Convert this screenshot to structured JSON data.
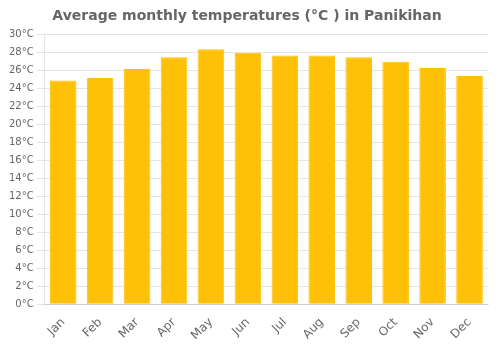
{
  "chart_data": {
    "type": "bar",
    "title": "Average monthly temperatures (°C ) in Panikihan",
    "categories": [
      "Jan",
      "Feb",
      "Mar",
      "Apr",
      "May",
      "Jun",
      "Jul",
      "Aug",
      "Sep",
      "Oct",
      "Nov",
      "Dec"
    ],
    "values": [
      24.9,
      25.2,
      26.2,
      27.5,
      28.4,
      28.0,
      27.7,
      27.7,
      27.5,
      27.0,
      26.3,
      25.4
    ],
    "color": "#FFC107",
    "ylim": [
      0,
      30
    ],
    "yticks": [
      {
        "value": 0,
        "label": "0°C"
      },
      {
        "value": 2,
        "label": "2°C"
      },
      {
        "value": 4,
        "label": "4°C"
      },
      {
        "value": 6,
        "label": "6°C"
      },
      {
        "value": 8,
        "label": "8°C"
      },
      {
        "value": 10,
        "label": "10°C"
      },
      {
        "value": 12,
        "label": "12°C"
      },
      {
        "value": 14,
        "label": "14°C"
      },
      {
        "value": 16,
        "label": "16°C"
      },
      {
        "value": 18,
        "label": "18°C"
      },
      {
        "value": 20,
        "label": "20°C"
      },
      {
        "value": 22,
        "label": "22°C"
      },
      {
        "value": 24,
        "label": "24°C"
      },
      {
        "value": 26,
        "label": "26°C"
      },
      {
        "value": 28,
        "label": "28°C"
      },
      {
        "value": 30,
        "label": "30°C"
      }
    ],
    "grid": true
  }
}
